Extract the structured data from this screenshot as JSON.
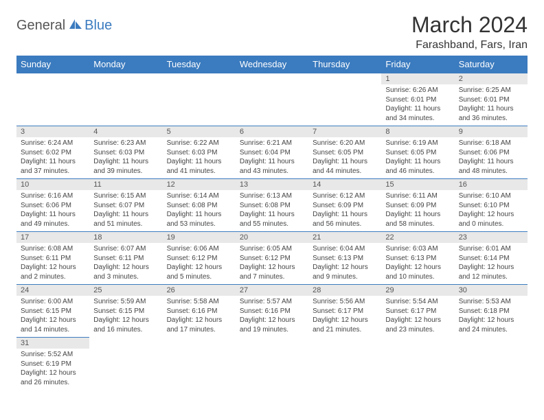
{
  "logo": {
    "word1": "General",
    "word2": "Blue",
    "icon_color": "#3b7bbf"
  },
  "title": "March 2024",
  "location": "Farashband, Fars, Iran",
  "header_bg": "#3b7bbf",
  "daynum_bg": "#e8e8e8",
  "columns": [
    "Sunday",
    "Monday",
    "Tuesday",
    "Wednesday",
    "Thursday",
    "Friday",
    "Saturday"
  ],
  "weeks": [
    [
      null,
      null,
      null,
      null,
      null,
      {
        "n": "1",
        "sunrise": "6:26 AM",
        "sunset": "6:01 PM",
        "day_h": "11",
        "day_m": "34"
      },
      {
        "n": "2",
        "sunrise": "6:25 AM",
        "sunset": "6:01 PM",
        "day_h": "11",
        "day_m": "36"
      }
    ],
    [
      {
        "n": "3",
        "sunrise": "6:24 AM",
        "sunset": "6:02 PM",
        "day_h": "11",
        "day_m": "37"
      },
      {
        "n": "4",
        "sunrise": "6:23 AM",
        "sunset": "6:03 PM",
        "day_h": "11",
        "day_m": "39"
      },
      {
        "n": "5",
        "sunrise": "6:22 AM",
        "sunset": "6:03 PM",
        "day_h": "11",
        "day_m": "41"
      },
      {
        "n": "6",
        "sunrise": "6:21 AM",
        "sunset": "6:04 PM",
        "day_h": "11",
        "day_m": "43"
      },
      {
        "n": "7",
        "sunrise": "6:20 AM",
        "sunset": "6:05 PM",
        "day_h": "11",
        "day_m": "44"
      },
      {
        "n": "8",
        "sunrise": "6:19 AM",
        "sunset": "6:05 PM",
        "day_h": "11",
        "day_m": "46"
      },
      {
        "n": "9",
        "sunrise": "6:18 AM",
        "sunset": "6:06 PM",
        "day_h": "11",
        "day_m": "48"
      }
    ],
    [
      {
        "n": "10",
        "sunrise": "6:16 AM",
        "sunset": "6:06 PM",
        "day_h": "11",
        "day_m": "49"
      },
      {
        "n": "11",
        "sunrise": "6:15 AM",
        "sunset": "6:07 PM",
        "day_h": "11",
        "day_m": "51"
      },
      {
        "n": "12",
        "sunrise": "6:14 AM",
        "sunset": "6:08 PM",
        "day_h": "11",
        "day_m": "53"
      },
      {
        "n": "13",
        "sunrise": "6:13 AM",
        "sunset": "6:08 PM",
        "day_h": "11",
        "day_m": "55"
      },
      {
        "n": "14",
        "sunrise": "6:12 AM",
        "sunset": "6:09 PM",
        "day_h": "11",
        "day_m": "56"
      },
      {
        "n": "15",
        "sunrise": "6:11 AM",
        "sunset": "6:09 PM",
        "day_h": "11",
        "day_m": "58"
      },
      {
        "n": "16",
        "sunrise": "6:10 AM",
        "sunset": "6:10 PM",
        "day_h": "12",
        "day_m": "0"
      }
    ],
    [
      {
        "n": "17",
        "sunrise": "6:08 AM",
        "sunset": "6:11 PM",
        "day_h": "12",
        "day_m": "2"
      },
      {
        "n": "18",
        "sunrise": "6:07 AM",
        "sunset": "6:11 PM",
        "day_h": "12",
        "day_m": "3"
      },
      {
        "n": "19",
        "sunrise": "6:06 AM",
        "sunset": "6:12 PM",
        "day_h": "12",
        "day_m": "5"
      },
      {
        "n": "20",
        "sunrise": "6:05 AM",
        "sunset": "6:12 PM",
        "day_h": "12",
        "day_m": "7"
      },
      {
        "n": "21",
        "sunrise": "6:04 AM",
        "sunset": "6:13 PM",
        "day_h": "12",
        "day_m": "9"
      },
      {
        "n": "22",
        "sunrise": "6:03 AM",
        "sunset": "6:13 PM",
        "day_h": "12",
        "day_m": "10"
      },
      {
        "n": "23",
        "sunrise": "6:01 AM",
        "sunset": "6:14 PM",
        "day_h": "12",
        "day_m": "12"
      }
    ],
    [
      {
        "n": "24",
        "sunrise": "6:00 AM",
        "sunset": "6:15 PM",
        "day_h": "12",
        "day_m": "14"
      },
      {
        "n": "25",
        "sunrise": "5:59 AM",
        "sunset": "6:15 PM",
        "day_h": "12",
        "day_m": "16"
      },
      {
        "n": "26",
        "sunrise": "5:58 AM",
        "sunset": "6:16 PM",
        "day_h": "12",
        "day_m": "17"
      },
      {
        "n": "27",
        "sunrise": "5:57 AM",
        "sunset": "6:16 PM",
        "day_h": "12",
        "day_m": "19"
      },
      {
        "n": "28",
        "sunrise": "5:56 AM",
        "sunset": "6:17 PM",
        "day_h": "12",
        "day_m": "21"
      },
      {
        "n": "29",
        "sunrise": "5:54 AM",
        "sunset": "6:17 PM",
        "day_h": "12",
        "day_m": "23"
      },
      {
        "n": "30",
        "sunrise": "5:53 AM",
        "sunset": "6:18 PM",
        "day_h": "12",
        "day_m": "24"
      }
    ],
    [
      {
        "n": "31",
        "sunrise": "5:52 AM",
        "sunset": "6:19 PM",
        "day_h": "12",
        "day_m": "26"
      },
      null,
      null,
      null,
      null,
      null,
      null
    ]
  ],
  "labels": {
    "sunrise": "Sunrise:",
    "sunset": "Sunset:",
    "daylight1": "Daylight:",
    "hours": "hours",
    "and": "and",
    "minutes": "minutes."
  }
}
